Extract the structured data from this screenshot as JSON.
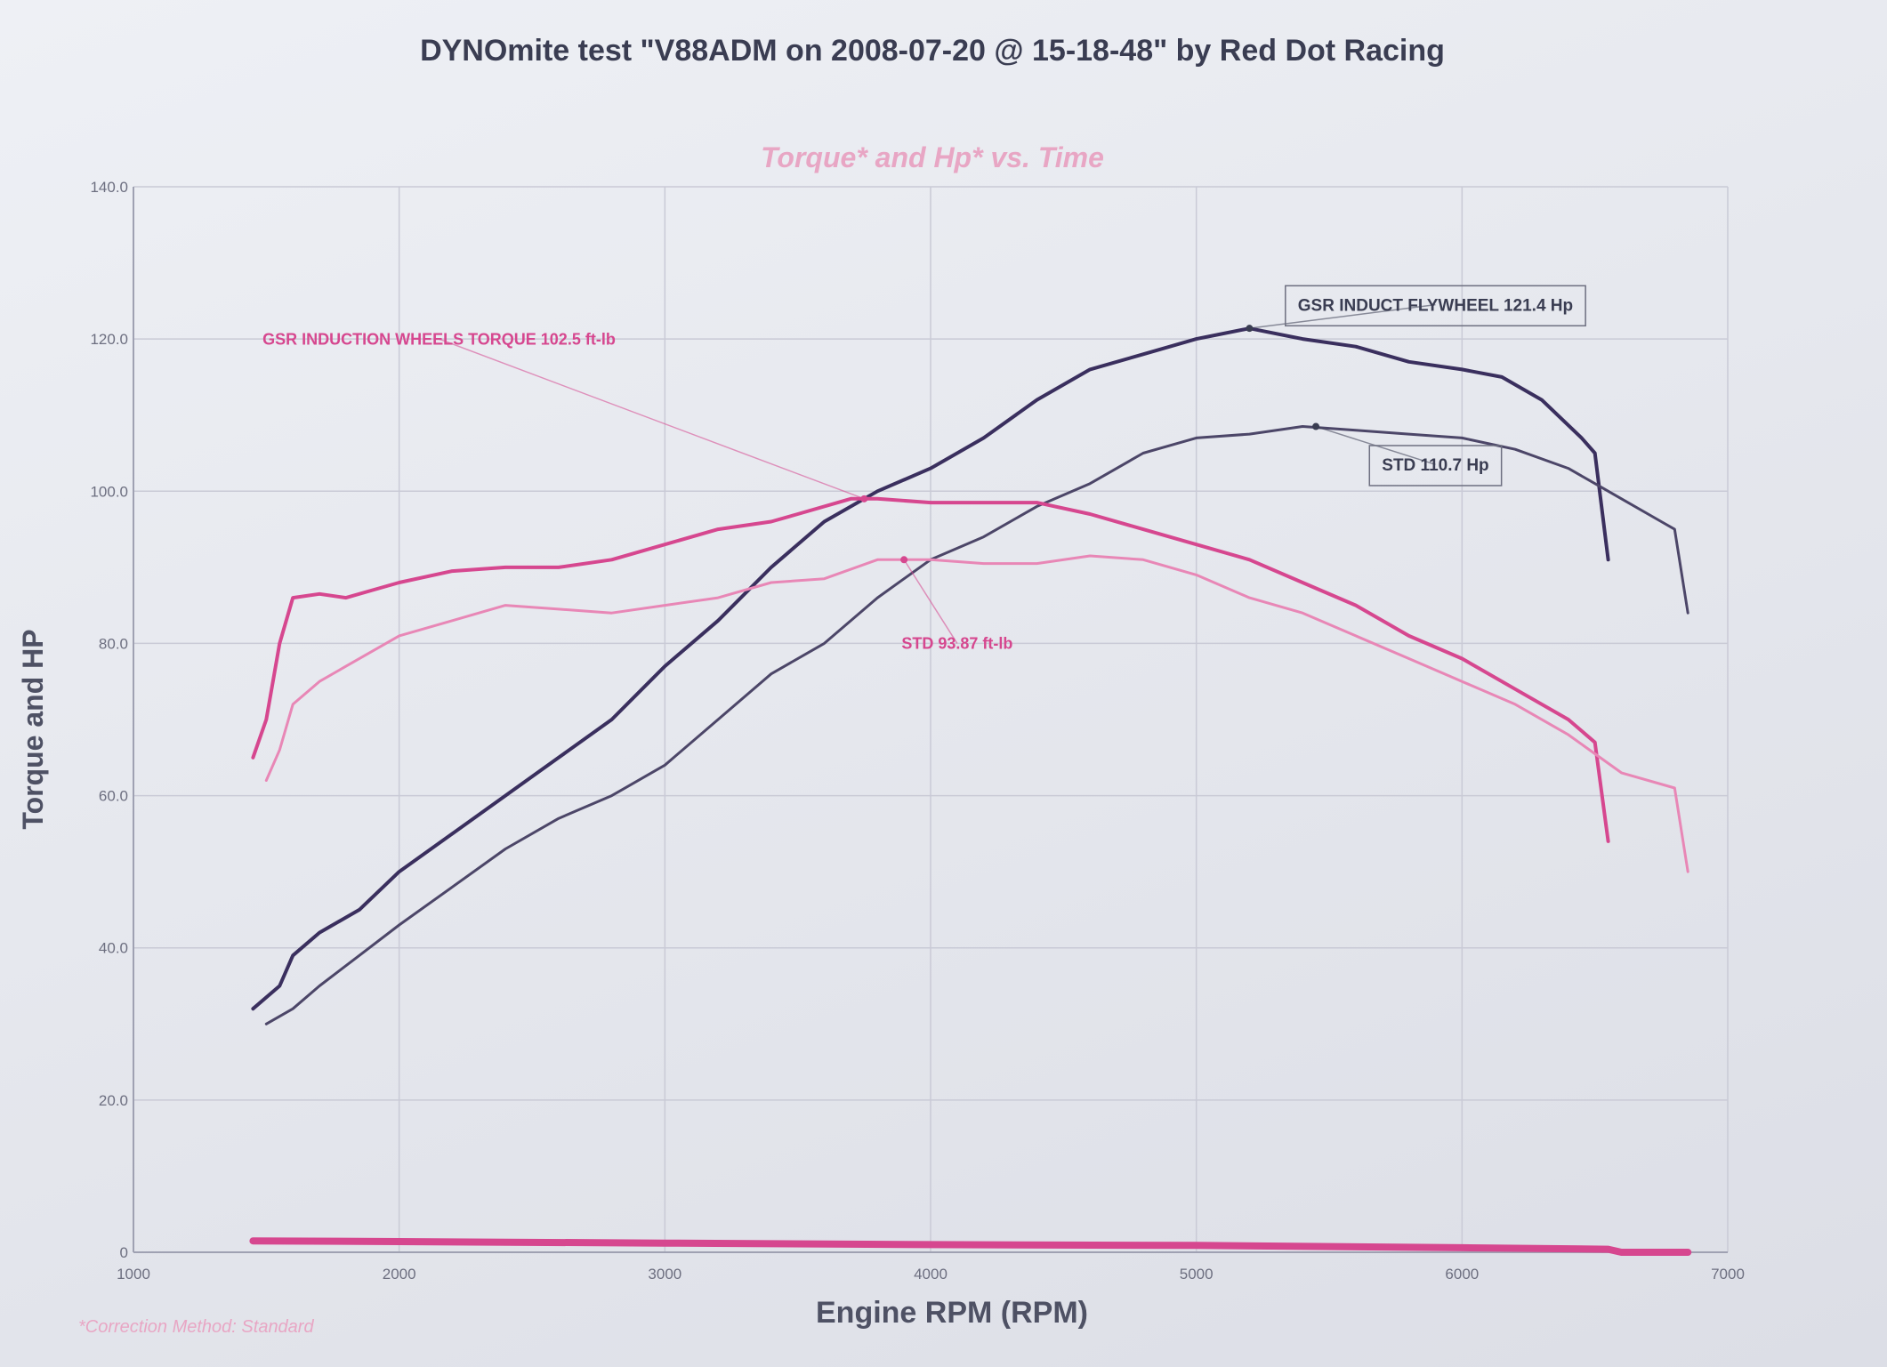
{
  "chart_data": {
    "type": "line",
    "title": "DYNOmite test \"V88ADM on 2008-07-20 @ 15-18-48\" by Red Dot Racing",
    "subtitle": "Torque* and Hp* vs. Time",
    "xlabel": "Engine RPM (RPM)",
    "ylabel": "Torque and HP",
    "footnote": "*Correction Method: Standard",
    "xlim": [
      1000,
      7000
    ],
    "ylim": [
      0,
      140
    ],
    "x_ticks": [
      1000,
      2000,
      3000,
      4000,
      5000,
      6000,
      7000
    ],
    "x_tick_labels": [
      "1000",
      "2000",
      "3000",
      "4000",
      "5000",
      "6000",
      "7000"
    ],
    "y_ticks": [
      0,
      20,
      40,
      60,
      80,
      100,
      120,
      140
    ],
    "y_tick_labels": [
      "0",
      "20.0",
      "40.0",
      "60.0",
      "80.0",
      "100.0",
      "120.0",
      "140.0"
    ],
    "grid": true,
    "series": [
      {
        "color": "#3a2f5e",
        "width": 4,
        "x": [
          1450,
          1550,
          1600,
          1700,
          1850,
          2000,
          2200,
          2400,
          2600,
          2800,
          3000,
          3200,
          3400,
          3600,
          3800,
          4000,
          4200,
          4400,
          4600,
          4800,
          5000,
          5200,
          5400,
          5600,
          5800,
          6000,
          6150,
          6300,
          6450,
          6500,
          6550
        ],
        "y": [
          32,
          35,
          39,
          42,
          45,
          50,
          55,
          60,
          65,
          70,
          77,
          83,
          90,
          96,
          100,
          103,
          107,
          112,
          116,
          118,
          120,
          121.4,
          120,
          119,
          117,
          116,
          115,
          112,
          107,
          105,
          91
        ]
      },
      {
        "color": "#4c4668",
        "width": 3,
        "x": [
          1500,
          1600,
          1700,
          1850,
          2000,
          2200,
          2400,
          2600,
          2800,
          3000,
          3200,
          3400,
          3600,
          3800,
          4000,
          4200,
          4400,
          4600,
          4800,
          5000,
          5200,
          5400,
          5600,
          5800,
          6000,
          6200,
          6400,
          6500,
          6600,
          6750,
          6800,
          6850
        ],
        "y": [
          30,
          32,
          35,
          39,
          43,
          48,
          53,
          57,
          60,
          64,
          70,
          76,
          80,
          86,
          91,
          94,
          98,
          101,
          105,
          107,
          107.5,
          108.5,
          108,
          107.5,
          107,
          105.5,
          103,
          101,
          99,
          96,
          95,
          84
        ]
      },
      {
        "color": "#d6478f",
        "width": 4,
        "x": [
          1450,
          1500,
          1550,
          1600,
          1700,
          1800,
          1900,
          2000,
          2200,
          2400,
          2600,
          2800,
          3000,
          3200,
          3400,
          3500,
          3700,
          3800,
          4000,
          4200,
          4400,
          4600,
          4800,
          5000,
          5200,
          5400,
          5600,
          5800,
          6000,
          6200,
          6400,
          6500,
          6550
        ],
        "y": [
          65,
          70,
          80,
          86,
          86.5,
          86,
          87,
          88,
          89.5,
          90,
          90,
          91,
          93,
          95,
          96,
          97,
          99,
          99,
          98.5,
          98.5,
          98.5,
          97,
          95,
          93,
          91,
          88,
          85,
          81,
          78,
          74,
          70,
          67,
          54
        ]
      },
      {
        "color": "#e887b6",
        "width": 3,
        "x": [
          1500,
          1550,
          1600,
          1700,
          1800,
          2000,
          2200,
          2400,
          2600,
          2800,
          3000,
          3200,
          3400,
          3600,
          3800,
          4000,
          4200,
          4400,
          4600,
          4800,
          5000,
          5200,
          5400,
          5600,
          5800,
          6000,
          6200,
          6400,
          6600,
          6800,
          6850
        ],
        "y": [
          62,
          66,
          72,
          75,
          77,
          81,
          83,
          85,
          84.5,
          84,
          85,
          86,
          88,
          88.5,
          91,
          91,
          90.5,
          90.5,
          91.5,
          91,
          89,
          86,
          84,
          81,
          78,
          75,
          72,
          68,
          63,
          61,
          50
        ]
      },
      {
        "color": "#d6478f",
        "width": 8,
        "x": [
          1450,
          2000,
          3000,
          4000,
          5000,
          6000,
          6550,
          6600,
          6850
        ],
        "y": [
          1.5,
          1.4,
          1.2,
          1.0,
          0.9,
          0.6,
          0.4,
          0,
          0
        ]
      }
    ],
    "annotations": [
      {
        "text": "GSR INDUCT FLYWHEEL 121.4 Hp",
        "boxed": true,
        "color": "#3a3d52",
        "target_x": 5200,
        "target_y": 121.4,
        "label_x": 5900,
        "label_y": 124.5
      },
      {
        "text": "STD 110.7 Hp",
        "boxed": true,
        "color": "#3a3d52",
        "target_x": 5450,
        "target_y": 108.5,
        "label_x": 5900,
        "label_y": 103.5
      },
      {
        "text": "GSR INDUCTION WHEELS TORQUE 102.5 ft-lb",
        "boxed": false,
        "color": "#d6478f",
        "target_x": 3750,
        "target_y": 99,
        "label_x": 2150,
        "label_y": 120
      },
      {
        "text": "STD 93.87 ft-lb",
        "boxed": false,
        "color": "#d6478f",
        "target_x": 3900,
        "target_y": 91,
        "label_x": 4100,
        "label_y": 80
      }
    ]
  }
}
